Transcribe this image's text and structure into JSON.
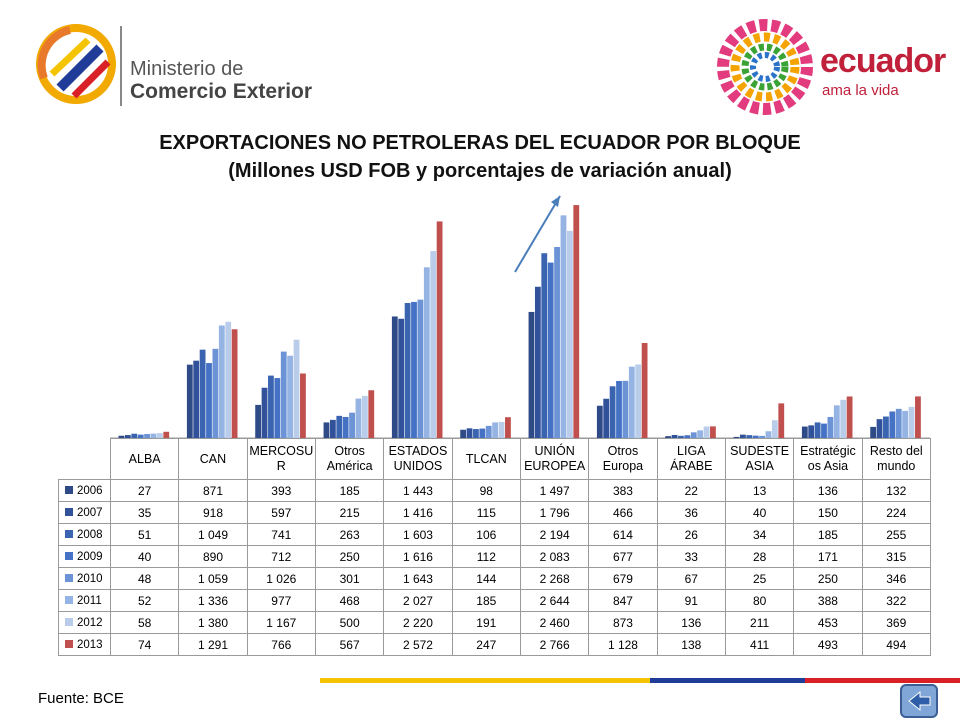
{
  "header": {
    "ministry_line1": "Ministerio de",
    "ministry_line2": "Comercio Exterior",
    "brand": "ecuador",
    "brand_tagline": "ama la vida"
  },
  "colors": {
    "series": [
      "#2E4A87",
      "#31529A",
      "#3A64B0",
      "#4572C4",
      "#6C93D6",
      "#95B3E3",
      "#B9CDEB",
      "#C0504D"
    ],
    "arrow": "#4A7EBB",
    "stripe_yellow": "#F5C400",
    "stripe_blue": "#1F3C99",
    "stripe_red": "#D92027"
  },
  "chart_data": {
    "type": "bar",
    "title": "EXPORTACIONES NO PETROLERAS DEL ECUADOR POR BLOQUE",
    "subtitle": "(Millones USD FOB y porcentajes de variación anual)",
    "categories": [
      "ALBA",
      "CAN",
      "MERCOSU R",
      "Otros América",
      "ESTADOS UNIDOS",
      "TLCAN",
      "UNIÓN EUROPEA",
      "Otros Europa",
      "LIGA ÁRABE",
      "SUDESTE ASIA",
      "Estratégic os Asia",
      "Resto del mundo"
    ],
    "series": [
      {
        "name": "2006",
        "values": [
          27,
          871,
          393,
          185,
          1443,
          98,
          1497,
          383,
          22,
          13,
          136,
          132
        ],
        "labels": [
          "27",
          "871",
          "393",
          "185",
          "1 443",
          "98",
          "1 497",
          "383",
          "22",
          "13",
          "136",
          "132"
        ]
      },
      {
        "name": "2007",
        "values": [
          35,
          918,
          597,
          215,
          1416,
          115,
          1796,
          466,
          36,
          40,
          150,
          224
        ],
        "labels": [
          "35",
          "918",
          "597",
          "215",
          "1 416",
          "115",
          "1 796",
          "466",
          "36",
          "40",
          "150",
          "224"
        ]
      },
      {
        "name": "2008",
        "values": [
          51,
          1049,
          741,
          263,
          1603,
          106,
          2194,
          614,
          26,
          34,
          185,
          255
        ],
        "labels": [
          "51",
          "1 049",
          "741",
          "263",
          "1 603",
          "106",
          "2 194",
          "614",
          "26",
          "34",
          "185",
          "255"
        ]
      },
      {
        "name": "2009",
        "values": [
          40,
          890,
          712,
          250,
          1616,
          112,
          2083,
          677,
          33,
          28,
          171,
          315
        ],
        "labels": [
          "40",
          "890",
          "712",
          "250",
          "1 616",
          "112",
          "2 083",
          "677",
          "33",
          "28",
          "171",
          "315"
        ]
      },
      {
        "name": "2010",
        "values": [
          48,
          1059,
          1026,
          301,
          1643,
          144,
          2268,
          679,
          67,
          25,
          250,
          346
        ],
        "labels": [
          "48",
          "1 059",
          "1 026",
          "301",
          "1 643",
          "144",
          "2 268",
          "679",
          "67",
          "25",
          "250",
          "346"
        ]
      },
      {
        "name": "2011",
        "values": [
          52,
          1336,
          977,
          468,
          2027,
          185,
          2644,
          847,
          91,
          80,
          388,
          322
        ],
        "labels": [
          "52",
          "1 336",
          "977",
          "468",
          "2 027",
          "185",
          "2 644",
          "847",
          "91",
          "80",
          "388",
          "322"
        ]
      },
      {
        "name": "2012",
        "values": [
          58,
          1380,
          1167,
          500,
          2220,
          191,
          2460,
          873,
          136,
          211,
          453,
          369
        ],
        "labels": [
          "58",
          "1 380",
          "1 167",
          "500",
          "2 220",
          "191",
          "2 460",
          "873",
          "136",
          "211",
          "453",
          "369"
        ]
      },
      {
        "name": "2013",
        "values": [
          74,
          1291,
          766,
          567,
          2572,
          247,
          2766,
          1128,
          138,
          411,
          493,
          494
        ],
        "labels": [
          "74",
          "1 291",
          "766",
          "567",
          "2 572",
          "247",
          "2 766",
          "1 128",
          "138",
          "411",
          "493",
          "494"
        ]
      }
    ],
    "ylim": [
      0,
      2850
    ],
    "grid": false,
    "legend": "data-table-below"
  },
  "footer": {
    "source": "Fuente: BCE",
    "back_icon": "back-arrow-icon"
  }
}
